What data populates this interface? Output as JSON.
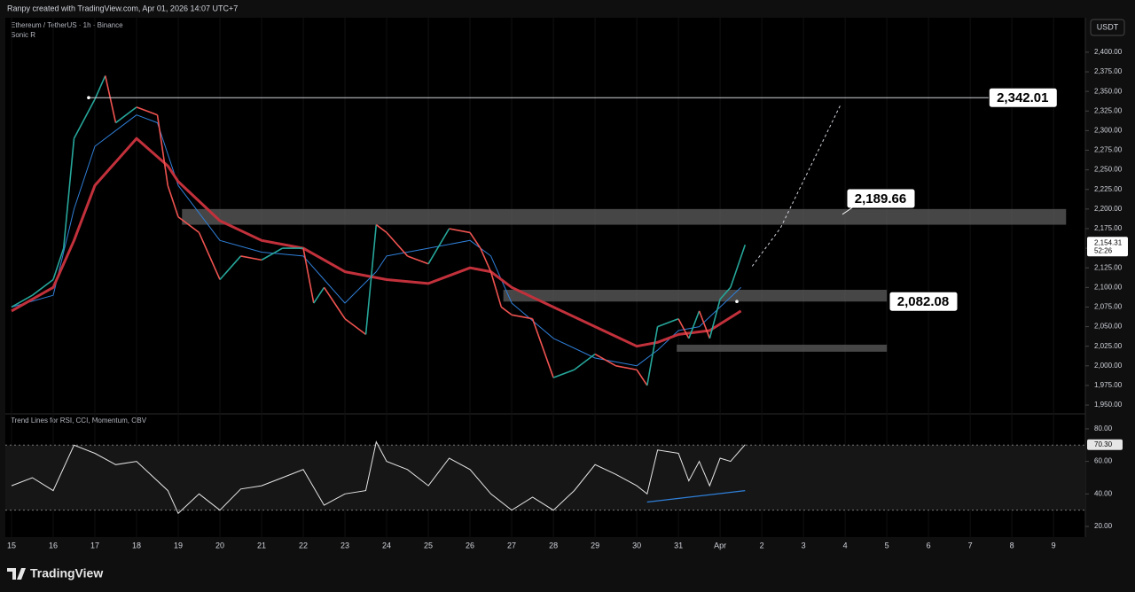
{
  "chart_data": {
    "type": "line",
    "header": "Ranpy created with TradingView.com, Apr 01, 2026 14:07 UTC+7",
    "title": "Ethereum / TetherUS · 1h · Binance",
    "subtitle": "Sonic R",
    "currency": "USDT",
    "brand": "TradingView",
    "xlim": [
      -0.106,
      25.72
    ],
    "xticks": [
      {
        "value": 0,
        "label": "15"
      },
      {
        "value": 1,
        "label": "16"
      },
      {
        "value": 2,
        "label": "17"
      },
      {
        "value": 3,
        "label": "18"
      },
      {
        "value": 4,
        "label": "19"
      },
      {
        "value": 5,
        "label": "20"
      },
      {
        "value": 6,
        "label": "21"
      },
      {
        "value": 7,
        "label": "22"
      },
      {
        "value": 8,
        "label": "23"
      },
      {
        "value": 9,
        "label": "24"
      },
      {
        "value": 10,
        "label": "25"
      },
      {
        "value": 11,
        "label": "26"
      },
      {
        "value": 12,
        "label": "27"
      },
      {
        "value": 13,
        "label": "28"
      },
      {
        "value": 14,
        "label": "29"
      },
      {
        "value": 15,
        "label": "30"
      },
      {
        "value": 16,
        "label": "31"
      },
      {
        "value": 17,
        "label": "Apr"
      },
      {
        "value": 18,
        "label": "2"
      },
      {
        "value": 19,
        "label": "3"
      },
      {
        "value": 20,
        "label": "4"
      },
      {
        "value": 21,
        "label": "5"
      },
      {
        "value": 22,
        "label": "6"
      },
      {
        "value": 23,
        "label": "7"
      },
      {
        "value": 24,
        "label": "8"
      },
      {
        "value": 25,
        "label": "9"
      }
    ],
    "ylim": [
      1941,
      2444
    ],
    "yticks": [
      {
        "value": 1950,
        "label": "1,950.00"
      },
      {
        "value": 1975,
        "label": "1,975.00"
      },
      {
        "value": 2000,
        "label": "2,000.00"
      },
      {
        "value": 2025,
        "label": "2,025.00"
      },
      {
        "value": 2050,
        "label": "2,050.00"
      },
      {
        "value": 2075,
        "label": "2,075.00"
      },
      {
        "value": 2100,
        "label": "2,100.00"
      },
      {
        "value": 2125,
        "label": "2,125.00"
      },
      {
        "value": 2150,
        "label": "2,150.00"
      },
      {
        "value": 2175,
        "label": "2,175.00"
      },
      {
        "value": 2200,
        "label": "2,200.00"
      },
      {
        "value": 2225,
        "label": "2,225.00"
      },
      {
        "value": 2250,
        "label": "2,250.00"
      },
      {
        "value": 2275,
        "label": "2,275.00"
      },
      {
        "value": 2300,
        "label": "2,300.00"
      },
      {
        "value": 2325,
        "label": "2,325.00"
      },
      {
        "value": 2350,
        "label": "2,350.00"
      },
      {
        "value": 2375,
        "label": "2,375.00"
      },
      {
        "value": 2400,
        "label": "2,400.00"
      }
    ],
    "series": [
      {
        "name": "Ethereum / TetherUS",
        "up_color": "#26a69a",
        "down_color": "#ef5350",
        "x": [
          0,
          0.5,
          1,
          1.25,
          1.5,
          2,
          2.25,
          2.5,
          3,
          3.5,
          3.75,
          4,
          4.5,
          5,
          5.5,
          6,
          6.5,
          7,
          7.25,
          7.5,
          8,
          8.5,
          8.75,
          9,
          9.5,
          10,
          10.5,
          11,
          11.25,
          11.5,
          11.75,
          12,
          12.5,
          13,
          13.5,
          14,
          14.5,
          15,
          15.25,
          15.5,
          16,
          16.25,
          16.5,
          16.75,
          17,
          17.25,
          17.6
        ],
        "values": [
          2075,
          2090,
          2110,
          2150,
          2290,
          2340,
          2370,
          2310,
          2330,
          2320,
          2230,
          2190,
          2170,
          2110,
          2140,
          2135,
          2150,
          2150,
          2080,
          2100,
          2060,
          2040,
          2180,
          2170,
          2140,
          2130,
          2175,
          2170,
          2150,
          2120,
          2075,
          2065,
          2060,
          1985,
          1995,
          2015,
          2000,
          1995,
          1975,
          2050,
          2060,
          2035,
          2070,
          2035,
          2085,
          2100,
          2154.31
        ]
      },
      {
        "name": "MA fast",
        "color": "#2f7fd8",
        "width": 1,
        "x": [
          0,
          1,
          1.5,
          2,
          3,
          3.5,
          4,
          5,
          6,
          7,
          7.5,
          8,
          8.75,
          9,
          10,
          11,
          11.5,
          12,
          13,
          14,
          15,
          15.5,
          16,
          16.5,
          17,
          17.5
        ],
        "values": [
          2075,
          2090,
          2200,
          2280,
          2320,
          2310,
          2230,
          2160,
          2145,
          2140,
          2110,
          2080,
          2120,
          2140,
          2150,
          2160,
          2140,
          2080,
          2035,
          2010,
          2000,
          2020,
          2045,
          2050,
          2075,
          2100
        ]
      },
      {
        "name": "MA slow",
        "color": "#c2313b",
        "width": 3,
        "x": [
          0,
          1,
          1.5,
          2,
          3,
          3.75,
          4,
          5,
          6,
          7,
          8,
          9,
          10,
          11,
          11.5,
          12,
          13,
          14,
          15,
          15.5,
          16,
          16.75,
          17.5
        ],
        "values": [
          2070,
          2100,
          2160,
          2230,
          2290,
          2255,
          2235,
          2185,
          2160,
          2150,
          2120,
          2110,
          2105,
          2125,
          2120,
          2100,
          2075,
          2050,
          2025,
          2030,
          2040,
          2045,
          2070
        ]
      }
    ],
    "zones": [
      {
        "low": 2180,
        "high": 2200,
        "x0": 4.09,
        "x1": 25.3
      },
      {
        "low": 2082,
        "high": 2097,
        "x0": 11.8,
        "x1": 21.0
      },
      {
        "low": 2018,
        "high": 2027,
        "x0": 15.96,
        "x1": 21.0
      }
    ],
    "levels": [
      {
        "value": 2342.01,
        "label": "2,342.01",
        "x0": 1.85,
        "x1": 23.45
      },
      {
        "value": 2189.66,
        "label": "2,189.66"
      },
      {
        "value": 2082.08,
        "label": "2,082.08"
      }
    ],
    "projection": {
      "x": [
        17.77,
        18.45,
        19.9
      ],
      "values": [
        2127,
        2176,
        2334
      ]
    },
    "last_price": {
      "value": 2154.31,
      "label": "2,154.31"
    },
    "countdown": "52:26",
    "indicator": {
      "title": "Trend Lines for RSI, CCI, Momentum, OBV",
      "ylim": [
        14,
        87.6
      ],
      "yticks": [
        {
          "value": 20,
          "label": "20.00"
        },
        {
          "value": 40,
          "label": "40.00"
        },
        {
          "value": 60,
          "label": "60.00"
        },
        {
          "value": 80,
          "label": "80.00"
        }
      ],
      "band": [
        30,
        70
      ],
      "color": "#e6e6e6",
      "x": [
        0,
        0.5,
        1,
        1.5,
        2,
        2.5,
        3,
        3.75,
        4,
        4.5,
        5,
        5.5,
        6,
        6.5,
        7,
        7.5,
        8,
        8.5,
        8.75,
        9,
        9.5,
        10,
        10.5,
        11,
        11.5,
        12,
        12.5,
        13,
        13.5,
        14,
        14.5,
        15,
        15.25,
        15.5,
        16,
        16.25,
        16.5,
        16.75,
        17,
        17.25,
        17.6
      ],
      "values": [
        45,
        50,
        42,
        70,
        65,
        58,
        60,
        42,
        28,
        40,
        30,
        43,
        45,
        50,
        55,
        33,
        40,
        42,
        72,
        60,
        55,
        45,
        62,
        55,
        40,
        30,
        38,
        30,
        42,
        58,
        52,
        45,
        40,
        67,
        65,
        48,
        60,
        45,
        62,
        60,
        70.3
      ],
      "last": {
        "value": 70.3,
        "label": "70.30"
      },
      "trendline": {
        "color": "#2f7fd8",
        "x": [
          15.25,
          17.6
        ],
        "values": [
          35,
          42
        ]
      }
    }
  }
}
